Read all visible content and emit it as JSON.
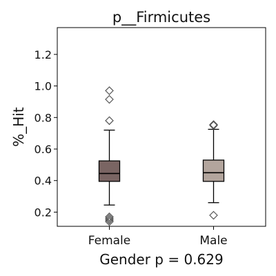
{
  "chart_data": {
    "type": "box",
    "title": "p__Firmicutes",
    "ylabel": "%_Hit",
    "xlabel": "Gender p = 0.629",
    "ylim": [
      0.11,
      1.37
    ],
    "yticks": [
      0.2,
      0.4,
      0.6,
      0.8,
      1.0,
      1.2
    ],
    "ytick_labels": [
      "0.2",
      "0.4",
      "0.6",
      "0.8",
      "1.0",
      "1.2"
    ],
    "categories": [
      "Female",
      "Male"
    ],
    "series": [
      {
        "category": "Female",
        "color": "#7a6563",
        "whisker_low": 0.245,
        "q1": 0.395,
        "median": 0.445,
        "q3": 0.525,
        "whisker_high": 0.72,
        "outliers": [
          0.97,
          0.915,
          0.78,
          0.17,
          0.16,
          0.15,
          0.14
        ]
      },
      {
        "category": "Male",
        "color": "#b3a59d",
        "whisker_low": 0.26,
        "q1": 0.395,
        "median": 0.45,
        "q3": 0.53,
        "whisker_high": 0.725,
        "outliers": [
          0.755,
          0.75,
          0.18
        ]
      }
    ],
    "grid": false,
    "legend": "none"
  }
}
